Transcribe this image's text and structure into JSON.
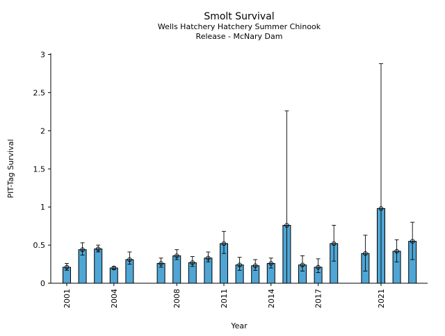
{
  "chart_data": {
    "type": "bar",
    "title": "Smolt Survival",
    "subtitle_lines": [
      "Wells Hatchery Hatchery Summer Chinook",
      "Release - McNary Dam"
    ],
    "xlabel": "Year",
    "ylabel": "PIT-Tag Survival",
    "ylim": [
      0,
      3.0
    ],
    "yticks": [
      "0",
      "0.5",
      "1",
      "1.5",
      "2",
      "2.5",
      "3"
    ],
    "xticks": [
      "2001",
      "2004",
      "2008",
      "2011",
      "2014",
      "2017",
      "2021"
    ],
    "bar_color": "#4fa6d4",
    "marker": "open-circle",
    "error_bars": true,
    "grid": false,
    "points": [
      {
        "x": 2001,
        "y": 0.21,
        "low": 0.17,
        "high": 0.26
      },
      {
        "x": 2002,
        "y": 0.44,
        "low": 0.37,
        "high": 0.53
      },
      {
        "x": 2003,
        "y": 0.45,
        "low": 0.41,
        "high": 0.5
      },
      {
        "x": 2004,
        "y": 0.2,
        "low": 0.18,
        "high": 0.22
      },
      {
        "x": 2005,
        "y": 0.31,
        "low": 0.25,
        "high": 0.41
      },
      {
        "x": 2007,
        "y": 0.26,
        "low": 0.21,
        "high": 0.33
      },
      {
        "x": 2008,
        "y": 0.36,
        "low": 0.31,
        "high": 0.44
      },
      {
        "x": 2009,
        "y": 0.27,
        "low": 0.22,
        "high": 0.35
      },
      {
        "x": 2010,
        "y": 0.33,
        "low": 0.28,
        "high": 0.41
      },
      {
        "x": 2011,
        "y": 0.52,
        "low": 0.39,
        "high": 0.68
      },
      {
        "x": 2012,
        "y": 0.24,
        "low": 0.17,
        "high": 0.34
      },
      {
        "x": 2013,
        "y": 0.23,
        "low": 0.17,
        "high": 0.31
      },
      {
        "x": 2014,
        "y": 0.26,
        "low": 0.2,
        "high": 0.33
      },
      {
        "x": 2015,
        "y": 0.76,
        "low": 0.0,
        "high": 2.26
      },
      {
        "x": 2016,
        "y": 0.24,
        "low": 0.16,
        "high": 0.36
      },
      {
        "x": 2017,
        "y": 0.21,
        "low": 0.14,
        "high": 0.32
      },
      {
        "x": 2018,
        "y": 0.52,
        "low": 0.29,
        "high": 0.76
      },
      {
        "x": 2020,
        "y": 0.39,
        "low": 0.16,
        "high": 0.63
      },
      {
        "x": 2021,
        "y": 0.98,
        "low": 0.0,
        "high": 2.88
      },
      {
        "x": 2022,
        "y": 0.42,
        "low": 0.28,
        "high": 0.57
      },
      {
        "x": 2023,
        "y": 0.55,
        "low": 0.31,
        "high": 0.8
      }
    ]
  }
}
